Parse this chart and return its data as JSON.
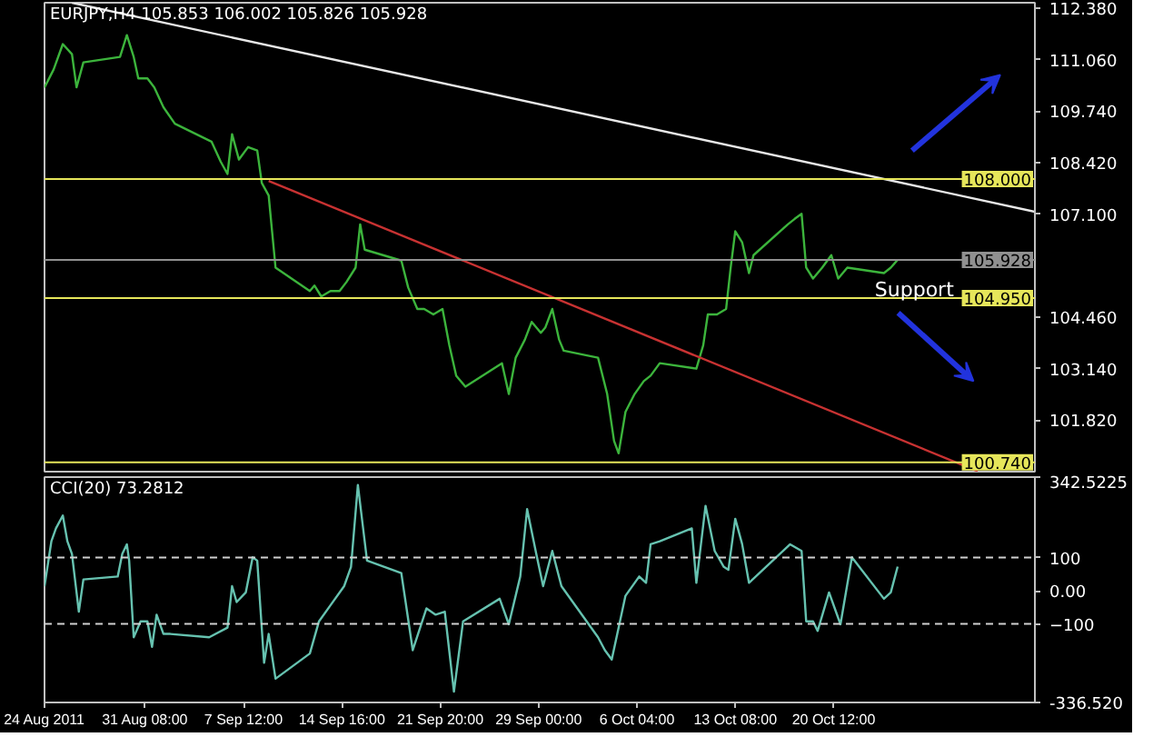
{
  "chart_data": [
    {
      "type": "line",
      "title": "EURJPY,H4 105.853 106.002 105.826 105.928",
      "tick_labels": "y",
      "line_style": "solid",
      "xlim": [
        "2011-08-24T00:00",
        "2011-11-04T04:00"
      ],
      "ylim": [
        100.5,
        112.52
      ],
      "yticks": [
        {
          "value": 112.38,
          "label": "112.380"
        },
        {
          "value": 111.06,
          "label": "111.060"
        },
        {
          "value": 109.74,
          "label": "109.740"
        },
        {
          "value": 108.42,
          "label": "108.420"
        },
        {
          "value": 107.1,
          "label": "107.100"
        },
        {
          "value": 104.46,
          "label": "104.460"
        },
        {
          "value": 103.14,
          "label": "103.140"
        },
        {
          "value": 101.82,
          "label": "101.820"
        }
      ],
      "series": [
        {
          "color": "#3cb43c",
          "x": [
            "2011-08-24T00:00",
            "2011-08-24T16:00",
            "2011-08-25T08:00",
            "2011-08-26T00:00",
            "2011-08-26T08:00",
            "2011-08-26T20:00",
            "2011-08-29T12:00",
            "2011-08-30T00:00",
            "2011-08-30T12:00",
            "2011-08-30T20:00",
            "2011-08-31T12:00",
            "2011-09-01T00:00",
            "2011-09-01T16:00",
            "2011-09-02T12:00",
            "2011-09-05T04:00",
            "2011-09-05T20:00",
            "2011-09-06T08:00",
            "2011-09-06T16:00",
            "2011-09-07T04:00",
            "2011-09-07T20:00",
            "2011-09-08T12:00",
            "2011-09-08T20:00",
            "2011-09-09T08:00",
            "2011-09-09T20:00",
            "2011-09-12T08:00",
            "2011-09-12T16:00",
            "2011-09-13T04:00",
            "2011-09-13T20:00",
            "2011-09-14T12:00",
            "2011-09-15T00:00",
            "2011-09-15T16:00",
            "2011-09-16T00:00",
            "2011-09-16T08:00",
            "2011-09-19T00:00",
            "2011-09-19T12:00",
            "2011-09-20T04:00",
            "2011-09-20T16:00",
            "2011-09-21T08:00",
            "2011-09-22T00:00",
            "2011-09-22T12:00",
            "2011-09-23T00:00",
            "2011-09-23T16:00",
            "2011-09-26T08:00",
            "2011-09-26T20:00",
            "2011-09-27T08:00",
            "2011-09-28T00:00",
            "2011-09-28T12:00",
            "2011-09-29T04:00",
            "2011-09-29T12:00",
            "2011-09-30T00:00",
            "2011-09-30T12:00",
            "2011-09-30T20:00",
            "2011-10-03T08:00",
            "2011-10-04T00:00",
            "2011-10-04T12:00",
            "2011-10-04T20:00",
            "2011-10-05T08:00",
            "2011-10-06T00:00",
            "2011-10-06T16:00",
            "2011-10-07T04:00",
            "2011-10-07T20:00",
            "2011-10-10T12:00",
            "2011-10-11T00:00",
            "2011-10-11T08:00",
            "2011-10-12T00:00",
            "2011-10-12T16:00",
            "2011-10-13T00:00",
            "2011-10-13T08:00",
            "2011-10-13T20:00",
            "2011-10-14T08:00",
            "2011-10-14T16:00",
            "2011-10-17T04:00",
            "2011-10-17T16:00",
            "2011-10-18T04:00",
            "2011-10-18T12:00",
            "2011-10-19T00:00",
            "2011-10-19T16:00",
            "2011-10-20T08:00",
            "2011-10-20T20:00",
            "2011-10-21T12:00",
            "2011-10-24T04:00",
            "2011-10-24T16:00",
            "2011-10-25T04:00"
          ],
          "values": [
            110.35,
            110.81,
            111.46,
            111.2,
            110.35,
            110.99,
            111.13,
            111.69,
            111.13,
            110.58,
            110.58,
            110.35,
            109.84,
            109.42,
            108.96,
            108.45,
            108.13,
            109.15,
            108.5,
            108.82,
            108.73,
            107.9,
            107.58,
            105.73,
            105.13,
            105.27,
            104.99,
            105.13,
            105.13,
            105.36,
            105.73,
            106.84,
            106.19,
            105.91,
            105.22,
            104.67,
            104.67,
            104.53,
            104.67,
            103.74,
            102.96,
            102.68,
            103.28,
            102.49,
            103.42,
            103.88,
            104.34,
            104.06,
            104.2,
            104.67,
            103.88,
            103.6,
            103.42,
            102.49,
            101.29,
            100.97,
            102.03,
            102.49,
            102.82,
            102.96,
            103.28,
            103.14,
            103.74,
            104.53,
            104.53,
            104.67,
            105.73,
            106.66,
            106.38,
            105.59,
            106.05,
            106.84,
            106.98,
            107.11,
            105.73,
            105.45,
            105.73,
            106.05,
            105.45,
            105.73,
            105.59,
            105.73,
            105.93
          ]
        },
        {
          "color": "#e8e8e8",
          "x": [
            "2011-08-26T00:00",
            "2011-11-04T04:00"
          ],
          "values": [
            112.52,
            107.16
          ]
        },
        {
          "color": "#c83232",
          "x": [
            "2011-09-09T08:00",
            "2011-10-31T00:00"
          ],
          "values": [
            107.95,
            100.51
          ]
        }
      ],
      "ref_lines": [
        {
          "axis": "y",
          "value": 108.0,
          "label": "108.000",
          "color": "#e6e65a"
        },
        {
          "axis": "y",
          "value": 105.928,
          "label": "105.928",
          "color": "#909090"
        },
        {
          "axis": "y",
          "value": 104.95,
          "label": "104.950",
          "color": "#e6e65a"
        },
        {
          "axis": "y",
          "value": 100.74,
          "label": "100.740",
          "color": "#e6e65a"
        }
      ],
      "annotations": [
        {
          "text": "Support",
          "x": "2011-10-23T12:00",
          "y": 105.17
        }
      ]
    },
    {
      "type": "line",
      "title": "CCI(20) 73.2812",
      "line_style": "solid",
      "xlim": [
        "2011-08-24T00:00",
        "2011-11-04T04:00"
      ],
      "ylim": [
        -336.52,
        342.5225
      ],
      "xticks": [
        {
          "value": "2011-08-24T00:00",
          "label": "24 Aug 2011"
        },
        {
          "value": "2011-08-31T08:00",
          "label": "31 Aug 08:00"
        },
        {
          "value": "2011-09-07T12:00",
          "label": "7 Sep 12:00"
        },
        {
          "value": "2011-09-14T16:00",
          "label": "14 Sep 16:00"
        },
        {
          "value": "2011-09-21T20:00",
          "label": "21 Sep 20:00"
        },
        {
          "value": "2011-09-29T00:00",
          "label": "29 Sep 00:00"
        },
        {
          "value": "2011-10-06T04:00",
          "label": "6 Oct 04:00"
        },
        {
          "value": "2011-10-13T08:00",
          "label": "13 Oct 08:00"
        },
        {
          "value": "2011-10-20T12:00",
          "label": "20 Oct 12:00"
        }
      ],
      "yticks": [
        {
          "value": 342.5225,
          "label": "342.5225"
        },
        100,
        {
          "value": 0,
          "label": "0.00"
        },
        -100,
        {
          "value": -336.52,
          "label": "-336.520"
        }
      ],
      "series": [
        {
          "color": "#66c2b0",
          "x": [
            "2011-08-24T00:00",
            "2011-08-24T12:00",
            "2011-08-24T20:00",
            "2011-08-25T08:00",
            "2011-08-25T16:00",
            "2011-08-26T00:00",
            "2011-08-26T12:00",
            "2011-08-26T20:00",
            "2011-08-29T08:00",
            "2011-08-29T16:00",
            "2011-08-30T00:00",
            "2011-08-30T04:00",
            "2011-08-30T12:00",
            "2011-08-31T00:00",
            "2011-08-31T12:00",
            "2011-08-31T20:00",
            "2011-09-01T04:00",
            "2011-09-01T16:00",
            "2011-09-02T04:00",
            "2011-09-05T00:00",
            "2011-09-06T08:00",
            "2011-09-06T16:00",
            "2011-09-07T00:00",
            "2011-09-07T16:00",
            "2011-09-08T04:00",
            "2011-09-08T12:00",
            "2011-09-09T00:00",
            "2011-09-09T08:00",
            "2011-09-09T20:00",
            "2011-09-12T08:00",
            "2011-09-13T00:00",
            "2011-09-13T20:00",
            "2011-09-14T20:00",
            "2011-09-15T08:00",
            "2011-09-15T20:00",
            "2011-09-16T12:00",
            "2011-09-19T00:00",
            "2011-09-19T20:00",
            "2011-09-20T20:00",
            "2011-09-21T12:00",
            "2011-09-22T04:00",
            "2011-09-22T20:00",
            "2011-09-23T12:00",
            "2011-09-26T04:00",
            "2011-09-26T20:00",
            "2011-09-27T16:00",
            "2011-09-28T04:00",
            "2011-09-28T20:00",
            "2011-09-29T08:00",
            "2011-09-30T00:00",
            "2011-09-30T16:00",
            "2011-10-03T08:00",
            "2011-10-03T20:00",
            "2011-10-04T08:00",
            "2011-10-04T20:00",
            "2011-10-05T08:00",
            "2011-10-06T08:00",
            "2011-10-06T20:00",
            "2011-10-07T04:00",
            "2011-10-07T20:00",
            "2011-10-10T04:00",
            "2011-10-10T12:00",
            "2011-10-11T04:00",
            "2011-10-11T20:00",
            "2011-10-12T12:00",
            "2011-10-12T20:00",
            "2011-10-13T08:00",
            "2011-10-13T20:00",
            "2011-10-14T08:00",
            "2011-10-17T08:00",
            "2011-10-18T04:00",
            "2011-10-18T12:00",
            "2011-10-19T00:00",
            "2011-10-19T08:00",
            "2011-10-20T04:00",
            "2011-10-21T00:00",
            "2011-10-21T20:00",
            "2011-10-24T04:00",
            "2011-10-24T16:00",
            "2011-10-25T04:00"
          ],
          "values": [
            14,
            149,
            188,
            227,
            149,
            111,
            -63,
            34,
            43,
            111,
            140,
            91,
            -140,
            -92,
            -92,
            -169,
            -72,
            -130,
            -130,
            -140,
            -111,
            14,
            -34,
            -5,
            101,
            91,
            -217,
            -130,
            -265,
            -189,
            -92,
            -44,
            14,
            72,
            319,
            91,
            53,
            -179,
            -53,
            -72,
            -63,
            -304,
            -92,
            -24,
            -101,
            43,
            246,
            111,
            14,
            120,
            14,
            -140,
            -179,
            -207,
            -111,
            -15,
            43,
            24,
            140,
            149,
            188,
            24,
            256,
            120,
            72,
            63,
            217,
            141,
            24,
            140,
            120,
            -92,
            -92,
            -121,
            -5,
            -101,
            101,
            -24,
            -5,
            73
          ]
        }
      ],
      "ref_lines": [
        {
          "axis": "y",
          "value": 100,
          "color": "#d0d0d0",
          "line_style": "dashed"
        },
        {
          "axis": "y",
          "value": -100,
          "color": "#d0d0d0",
          "line_style": "dashed"
        }
      ]
    }
  ]
}
